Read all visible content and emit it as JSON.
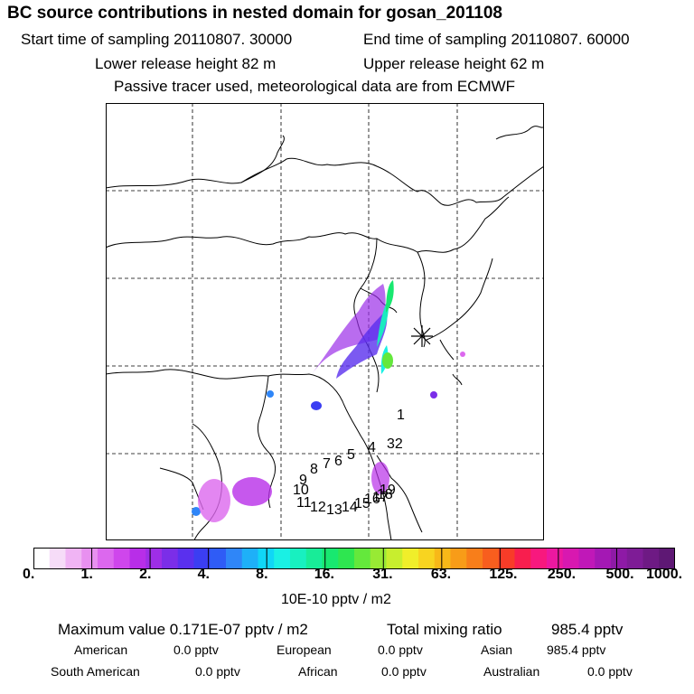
{
  "title": "BC  source contributions in nested domain for gosan_201108",
  "header": {
    "start": "Start time of sampling 20110807. 30000",
    "end": "End time of sampling 20110807. 60000",
    "lower": "Lower release height   82 m",
    "upper": "Upper release height   62 m",
    "note": "Passive tracer used, meteorological data are from ECMWF"
  },
  "colorbar": {
    "ticks": [
      "0.",
      "1.",
      "2.",
      "4.",
      "8.",
      "16.",
      "31.",
      "63.",
      "125.",
      "250.",
      "500.",
      "1000."
    ],
    "unit": "10E-10 pptv / m2",
    "colors": [
      "#ffffff",
      "#f6dcf8",
      "#f0b4f4",
      "#e890f0",
      "#dc68ee",
      "#cf46ec",
      "#b82ee8",
      "#9e2ee6",
      "#7b2ee8",
      "#5a30ee",
      "#3b3ef2",
      "#2f5cf6",
      "#2f86f8",
      "#1eb0f8",
      "#10d6f6",
      "#1af0e4",
      "#18f0c0",
      "#18ec98",
      "#18e870",
      "#2ee650",
      "#64e83c",
      "#98ea34",
      "#c8ee2e",
      "#f0ee2a",
      "#f8d420",
      "#f8b818",
      "#f89c18",
      "#f87e1a",
      "#f85e1e",
      "#f83c28",
      "#f81e4e",
      "#f8187e",
      "#ec18a0",
      "#d818b0",
      "#c018b8",
      "#a418b4",
      "#8e1aa6",
      "#7e1c96",
      "#6e1a84",
      "#5e1874"
    ]
  },
  "stats": {
    "max": "Maximum value  0.171E-07 pptv / m2",
    "total_label": "Total mixing ratio",
    "total_value": "985.4 pptv",
    "american_label": "American",
    "american_value": "0.0 pptv",
    "european_label": "European",
    "european_value": "0.0 pptv",
    "asian_label": "Asian",
    "asian_value": "985.4 pptv",
    "south_american_label": "South American",
    "south_american_value": "0.0 pptv",
    "african_label": "African",
    "african_value": "0.0 pptv",
    "australian_label": "Australian",
    "australian_value": "0.0 pptv"
  },
  "trajectory_labels": [
    "1",
    "32",
    "4",
    "5",
    "6",
    "7",
    "8",
    "9",
    "10",
    "11",
    "12",
    "13",
    "14",
    "15",
    "16",
    "17",
    "18",
    "19"
  ],
  "receptor_marker": "star-cross-icon"
}
